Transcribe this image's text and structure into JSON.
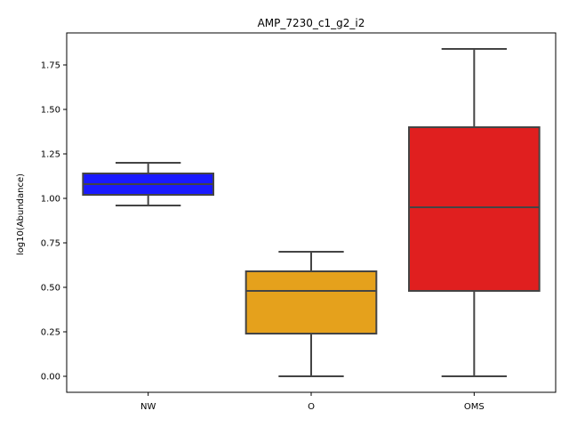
{
  "chart_data": {
    "type": "box",
    "title": "AMP_7230_c1_g2_i2",
    "xlabel": "",
    "ylabel": "log10(Abundance)",
    "ylim": [
      -0.09,
      1.93
    ],
    "yticks": [
      0.0,
      0.25,
      0.5,
      0.75,
      1.0,
      1.25,
      1.5,
      1.75
    ],
    "ytick_labels": [
      "0.00",
      "0.25",
      "0.50",
      "0.75",
      "1.00",
      "1.25",
      "1.50",
      "1.75"
    ],
    "grid": false,
    "categories": [
      "NW",
      "O",
      "OMS"
    ],
    "boxes": [
      {
        "category": "NW",
        "color": "#1a1aff",
        "whisker_low": 0.96,
        "q1": 1.02,
        "median": 1.08,
        "q3": 1.14,
        "whisker_high": 1.2
      },
      {
        "category": "O",
        "color": "#e5a11c",
        "whisker_low": 0.0,
        "q1": 0.24,
        "median": 0.48,
        "q3": 0.59,
        "whisker_high": 0.7
      },
      {
        "category": "OMS",
        "color": "#e01f1f",
        "whisker_low": 0.0,
        "q1": 0.48,
        "median": 0.95,
        "q3": 1.4,
        "whisker_high": 1.84
      }
    ]
  }
}
